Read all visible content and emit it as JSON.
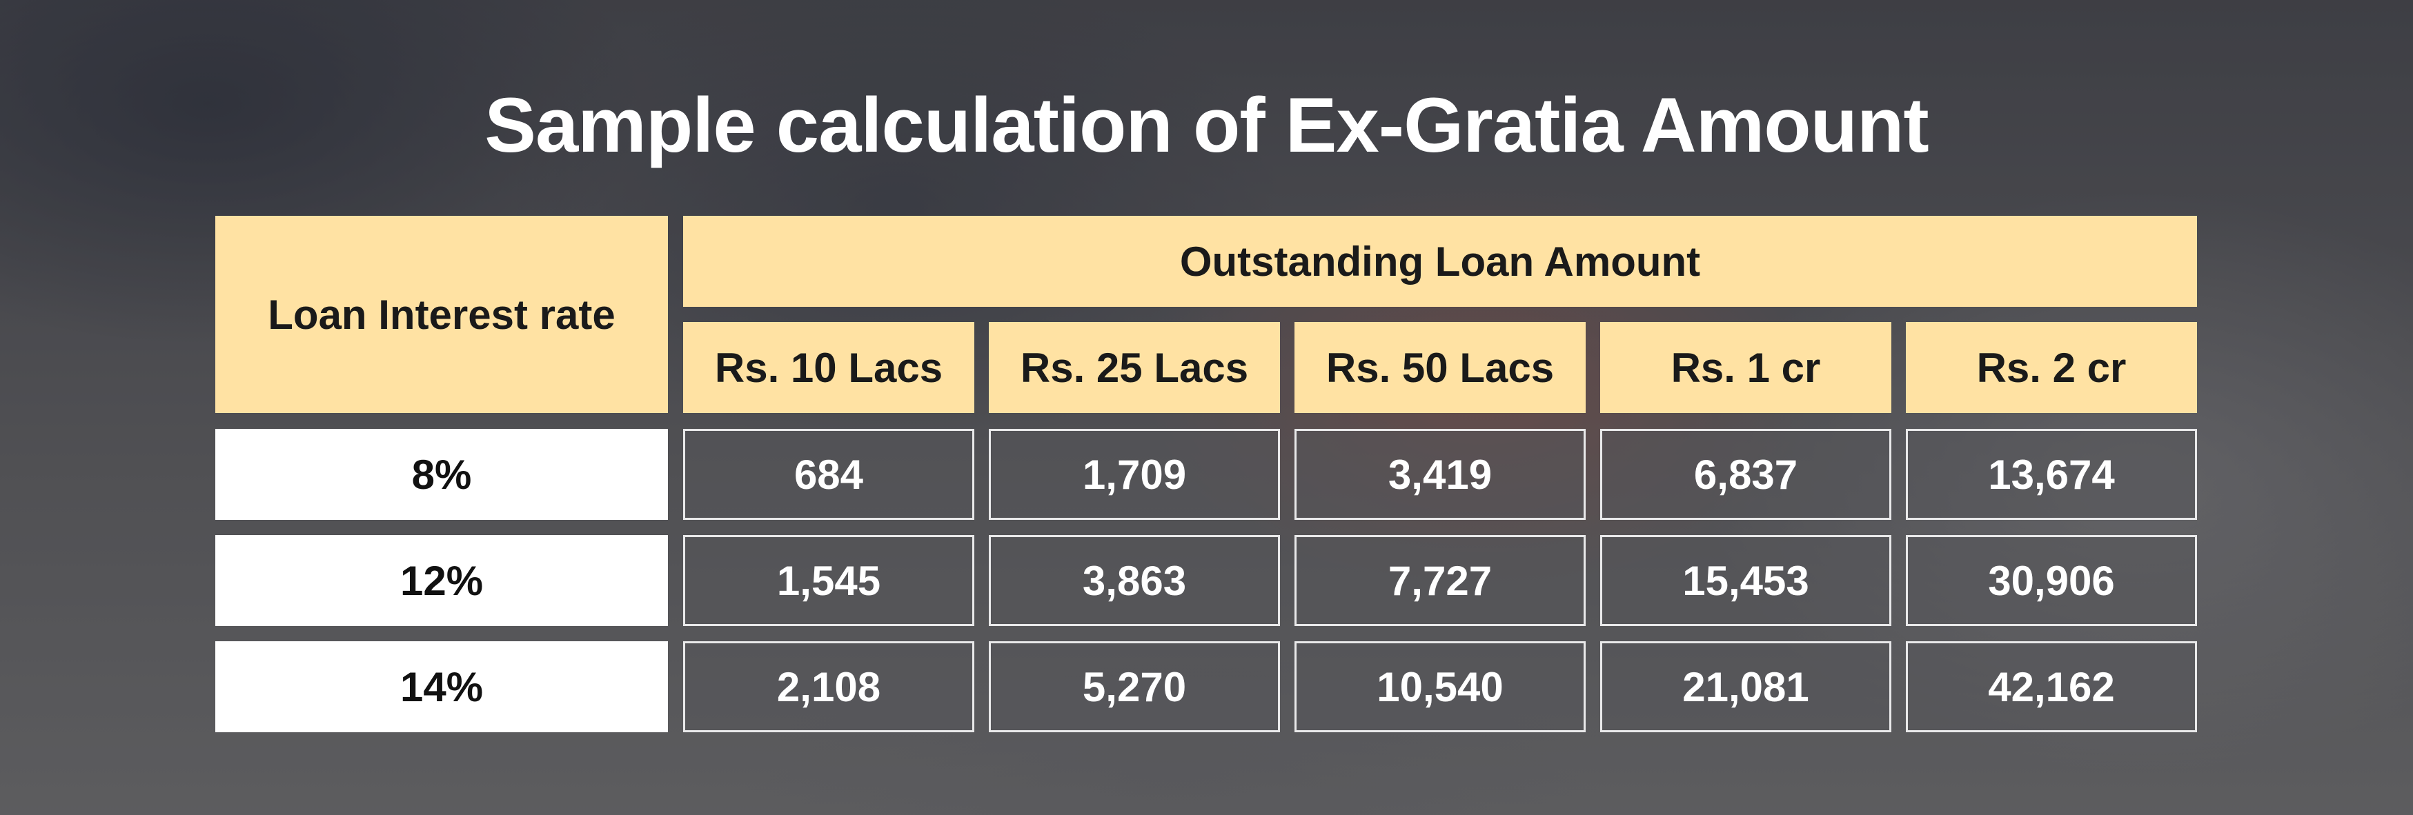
{
  "title": "Sample calculation of Ex-Gratia Amount",
  "table": {
    "row_header_label": "Loan Interest rate",
    "group_header_label": "Outstanding Loan Amount",
    "columns": [
      "Rs. 10 Lacs",
      "Rs. 25 Lacs",
      "Rs. 50 Lacs",
      "Rs. 1 cr",
      "Rs. 2 cr"
    ],
    "rows": [
      {
        "rate": "8%",
        "values": [
          "684",
          "1,709",
          "3,419",
          "6,837",
          "13,674"
        ]
      },
      {
        "rate": "12%",
        "values": [
          "1,545",
          "3,863",
          "7,727",
          "15,453",
          "30,906"
        ]
      },
      {
        "rate": "14%",
        "values": [
          "2,108",
          "5,270",
          "10,540",
          "21,081",
          "42,162"
        ]
      }
    ]
  },
  "colors": {
    "header_fill": "#ffe2a3",
    "rate_fill": "#ffffff",
    "value_border": "#e9e9ea",
    "title_text": "#ffffff"
  }
}
